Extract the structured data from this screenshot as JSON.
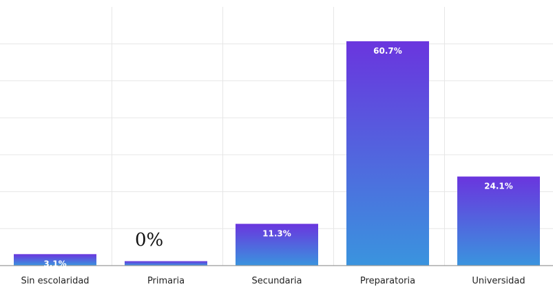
{
  "colors": {
    "bar_top": "#6a35de",
    "bar_bottom": "#3a94de",
    "grid": "#e6e6e6",
    "axis": "#9a9a9a",
    "data_label": "#ffffff"
  },
  "annotation": {
    "text": "0%"
  },
  "chart_data": {
    "type": "bar",
    "categories": [
      "Sin escolaridad",
      "Primaria",
      "Secundaria",
      "Preparatoria",
      "Universidad"
    ],
    "values": [
      3.1,
      1.2,
      11.3,
      60.7,
      24.1
    ],
    "data_labels": [
      "3.1%",
      "",
      "11.3%",
      "60.7%",
      "24.1%"
    ],
    "ylim": [
      0,
      70
    ],
    "grid": true,
    "legend": "none"
  }
}
